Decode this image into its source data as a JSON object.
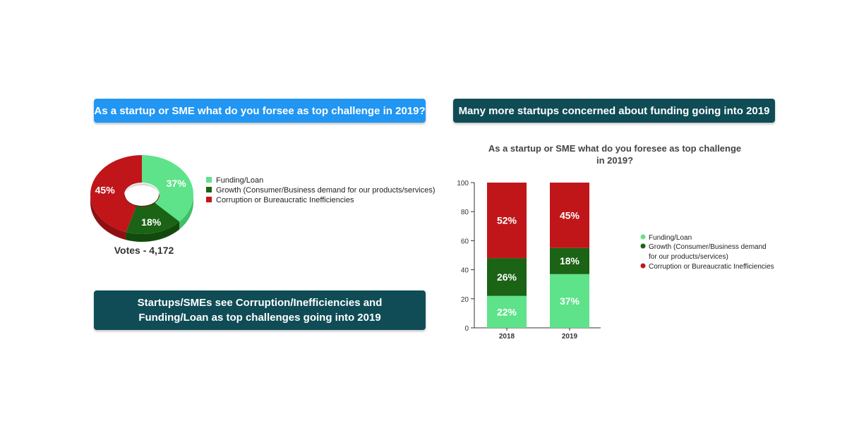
{
  "banners": {
    "left_top": "As a startup or SME what do you forsee as top challenge in 2019?",
    "right_top": "Many more startups concerned about funding going into 2019",
    "left_bottom": "Startups/SMEs see Corruption/Inefficiencies and Funding/Loan as top challenges going into 2019"
  },
  "colors": {
    "funding": "#5ee38a",
    "growth": "#1b6315",
    "corruption": "#c0161a",
    "funding_side": "#3fbf68",
    "growth_side": "#124a0e",
    "corruption_side": "#8e1013"
  },
  "chart_data": [
    {
      "type": "pie",
      "style": "3d-donut",
      "labels": [
        "Funding/Loan",
        "Growth (Consumer/Business demand for our products/services)",
        "Corruption or Bureaucratic Inefficiencies"
      ],
      "values": [
        37,
        18,
        45
      ],
      "value_labels": [
        "37%",
        "18%",
        "45%"
      ],
      "footer": "Votes - 4,172",
      "legend_placement": "right"
    },
    {
      "type": "bar",
      "stacked": true,
      "title_lines": [
        "As a startup or SME what do you foresee as top challenge",
        "in 2019?"
      ],
      "categories": [
        "2018",
        "2019"
      ],
      "series": [
        {
          "name": "Funding/Loan",
          "values": [
            22,
            37
          ],
          "labels": [
            "22%",
            "37%"
          ]
        },
        {
          "name": "Growth (Consumer/Business demand for our products/services)",
          "values": [
            26,
            18
          ],
          "labels": [
            "26%",
            "18%"
          ]
        },
        {
          "name": "Corruption or Bureaucratic Inefficiencies",
          "values": [
            52,
            45
          ],
          "labels": [
            "52%",
            "45%"
          ]
        }
      ],
      "legend_lines": [
        [
          "Funding/Loan"
        ],
        [
          "Growth (Consumer/Business demand",
          "for our products/services)"
        ],
        [
          "Corruption or Bureaucratic Inefficiencies"
        ]
      ],
      "ylim": [
        0,
        100
      ],
      "yticks": [
        "0",
        "20",
        "40",
        "60",
        "80",
        "100"
      ],
      "xlabel": "",
      "ylabel": "",
      "grid": false,
      "legend_placement": "right"
    }
  ]
}
